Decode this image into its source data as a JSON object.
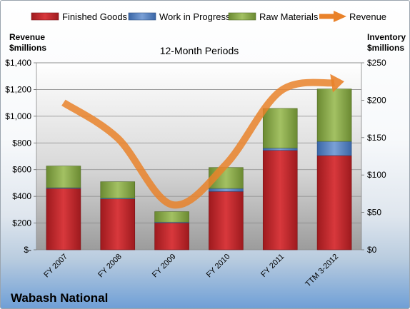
{
  "chart_data": {
    "type": "bar",
    "subtitle": "12-Month Periods",
    "company": "Wabash National",
    "left_axis_title": [
      "Revenue",
      "$millions"
    ],
    "right_axis_title": [
      "Inventory",
      "$millions"
    ],
    "categories": [
      "FY 2007",
      "FY 2008",
      "FY 2009",
      "FY 2010",
      "FY 2011",
      "TTM 3-2012"
    ],
    "left_ticks": [
      "$-",
      "$200",
      "$400",
      "$600",
      "$800",
      "$1,000",
      "$1,200",
      "$1,400"
    ],
    "right_ticks": [
      "$0",
      "$50",
      "$100",
      "$150",
      "$200",
      "$250"
    ],
    "left_range": [
      0,
      1400
    ],
    "right_range": [
      0,
      250
    ],
    "stacked": true,
    "series": [
      {
        "name": "Finished Goods",
        "axis": "right",
        "color": "#c0282c",
        "values": [
          82,
          68,
          36,
          78,
          133,
          126
        ]
      },
      {
        "name": "Work in Progress",
        "axis": "right",
        "color": "#4f7fc0",
        "values": [
          1,
          1,
          1,
          4,
          3,
          19
        ]
      },
      {
        "name": "Raw Materials",
        "axis": "right",
        "color": "#8aaa4a",
        "values": [
          29,
          22,
          14,
          28,
          53,
          70
        ]
      }
    ],
    "line_series": {
      "name": "Revenue",
      "axis": "left",
      "color": "#e9822a",
      "values": [
        1102,
        836,
        338,
        640,
        1187,
        1250
      ]
    },
    "grid": true,
    "legend": "top"
  }
}
